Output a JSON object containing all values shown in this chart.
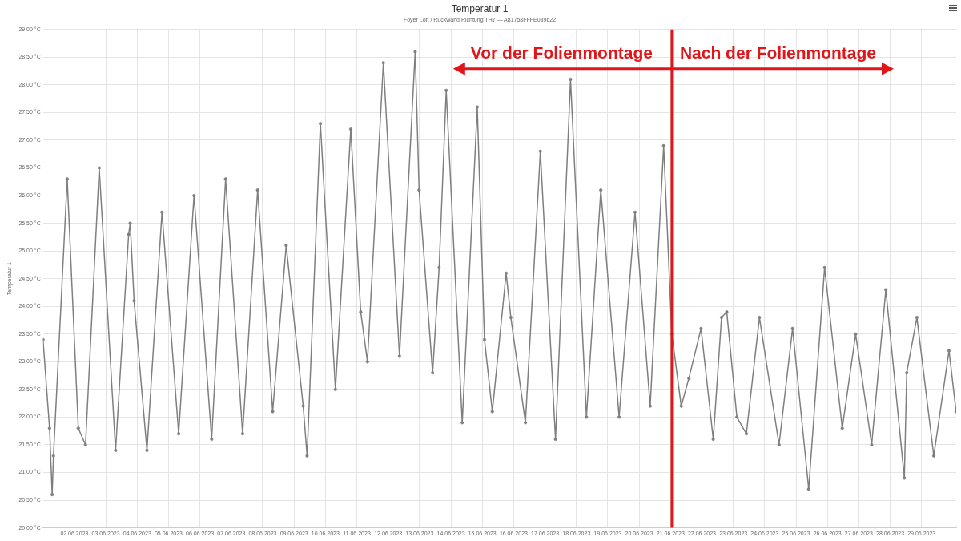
{
  "chart_data": {
    "type": "line",
    "title": "Temperatur 1",
    "subtitle": "Foyer Loft / Rückwand Richtung TH7 — A81758FFFE039622",
    "ylabel": "Temperatur 1",
    "series": [
      {
        "color": "#7f7f7f",
        "x": [
          "2023-06-01T00:00",
          "2023-06-01T05:00",
          "2023-06-01T07:00",
          "2023-06-01T08:00",
          "2023-06-01T18:30",
          "2023-06-02T03:00",
          "2023-06-02T08:30",
          "2023-06-02T19:00",
          "2023-06-03T07:30",
          "2023-06-03T17:30",
          "2023-06-03T18:40",
          "2023-06-03T21:40",
          "2023-06-04T07:30",
          "2023-06-04T19:00",
          "2023-06-05T07:45",
          "2023-06-05T19:30",
          "2023-06-06T09:00",
          "2023-06-06T19:40",
          "2023-06-07T08:40",
          "2023-06-07T20:10",
          "2023-06-08T07:40",
          "2023-06-08T18:00",
          "2023-06-09T07:00",
          "2023-06-09T10:00",
          "2023-06-09T20:10",
          "2023-06-10T07:40",
          "2023-06-10T19:25",
          "2023-06-11T03:00",
          "2023-06-11T08:10",
          "2023-06-11T20:20",
          "2023-06-12T08:40",
          "2023-06-12T20:40",
          "2023-06-12T23:40",
          "2023-06-13T10:00",
          "2023-06-13T15:00",
          "2023-06-13T20:25",
          "2023-06-14T08:40",
          "2023-06-14T20:10",
          "2023-06-15T01:40",
          "2023-06-15T07:40",
          "2023-06-15T18:15",
          "2023-06-15T21:50",
          "2023-06-16T09:00",
          "2023-06-16T20:25",
          "2023-06-17T08:00",
          "2023-06-17T19:30",
          "2023-06-18T07:40",
          "2023-06-18T18:40",
          "2023-06-19T08:40",
          "2023-06-19T20:50",
          "2023-06-20T08:25",
          "2023-06-20T18:45",
          "2023-06-21T01:00",
          "2023-06-21T08:10",
          "2023-06-21T14:00",
          "2023-06-21T23:20",
          "2023-06-22T08:40",
          "2023-06-22T15:00",
          "2023-06-22T19:00",
          "2023-06-23T02:45",
          "2023-06-23T10:00",
          "2023-06-23T20:00",
          "2023-06-24T11:00",
          "2023-06-24T21:20",
          "2023-06-25T09:40",
          "2023-06-25T21:50",
          "2023-06-26T11:20",
          "2023-06-26T21:35",
          "2023-06-27T09:50",
          "2023-06-27T20:40",
          "2023-06-28T10:50",
          "2023-06-28T12:40",
          "2023-06-28T20:25",
          "2023-06-29T09:20",
          "2023-06-29T21:00",
          "2023-06-30T02:25"
        ],
        "values": [
          23.4,
          21.8,
          20.6,
          21.3,
          26.3,
          21.8,
          21.5,
          26.5,
          21.4,
          25.3,
          25.5,
          24.1,
          21.4,
          25.7,
          21.7,
          26.0,
          21.6,
          26.3,
          21.7,
          26.1,
          22.1,
          25.1,
          22.2,
          21.3,
          27.3,
          22.5,
          27.2,
          23.9,
          23.0,
          28.4,
          23.1,
          28.6,
          26.1,
          22.8,
          24.7,
          27.9,
          21.9,
          27.6,
          23.4,
          22.1,
          24.6,
          23.8,
          21.9,
          26.8,
          21.6,
          28.1,
          22.0,
          26.1,
          22.0,
          25.7,
          22.2,
          26.9,
          23.5,
          22.2,
          22.7,
          23.6,
          21.6,
          23.8,
          23.9,
          22.0,
          21.7,
          23.8,
          21.5,
          23.6,
          20.7,
          24.7,
          21.8,
          23.5,
          21.5,
          24.3,
          20.9,
          22.8,
          23.8,
          21.3,
          23.2,
          22.1
        ]
      }
    ],
    "xlim": [
      "2023-06-01T00:00",
      "2023-06-30T02:30"
    ],
    "xticks": [
      {
        "value": "2023-06-02",
        "label": "02.06.2023"
      },
      {
        "value": "2023-06-03",
        "label": "03.06.2023"
      },
      {
        "value": "2023-06-04",
        "label": "04.06.2023"
      },
      {
        "value": "2023-06-05",
        "label": "05.06.2023"
      },
      {
        "value": "2023-06-06",
        "label": "06.06.2023"
      },
      {
        "value": "2023-06-07",
        "label": "07.06.2023"
      },
      {
        "value": "2023-06-08",
        "label": "08.06.2023"
      },
      {
        "value": "2023-06-09",
        "label": "09.06.2023"
      },
      {
        "value": "2023-06-10",
        "label": "10.06.2023"
      },
      {
        "value": "2023-06-11",
        "label": "11.06.2023"
      },
      {
        "value": "2023-06-12",
        "label": "12.06.2023"
      },
      {
        "value": "2023-06-13",
        "label": "13.06.2023"
      },
      {
        "value": "2023-06-14",
        "label": "14.06.2023"
      },
      {
        "value": "2023-06-15",
        "label": "15.06.2023"
      },
      {
        "value": "2023-06-16",
        "label": "16.06.2023"
      },
      {
        "value": "2023-06-17",
        "label": "17.06.2023"
      },
      {
        "value": "2023-06-18",
        "label": "18.06.2023"
      },
      {
        "value": "2023-06-19",
        "label": "19.06.2023"
      },
      {
        "value": "2023-06-20",
        "label": "20.06.2023"
      },
      {
        "value": "2023-06-21",
        "label": "21.06.2023"
      },
      {
        "value": "2023-06-22",
        "label": "22.06.2023"
      },
      {
        "value": "2023-06-23",
        "label": "23.06.2023"
      },
      {
        "value": "2023-06-24",
        "label": "24.06.2023"
      },
      {
        "value": "2023-06-25",
        "label": "25.06.2023"
      },
      {
        "value": "2023-06-26",
        "label": "26.06.2023"
      },
      {
        "value": "2023-06-27",
        "label": "27.06.2023"
      },
      {
        "value": "2023-06-28",
        "label": "28.06.2023"
      },
      {
        "value": "2023-06-29",
        "label": "29.06.2023"
      }
    ],
    "ylim": [
      20,
      29
    ],
    "yticks": [
      {
        "value": 20,
        "label": "20.00 °C"
      },
      {
        "value": 20.5,
        "label": "20.50 °C"
      },
      {
        "value": 21,
        "label": "21.00 °C"
      },
      {
        "value": 21.5,
        "label": "21.50 °C"
      },
      {
        "value": 22,
        "label": "22.00 °C"
      },
      {
        "value": 22.5,
        "label": "22.50 °C"
      },
      {
        "value": 23,
        "label": "23.00 °C"
      },
      {
        "value": 23.5,
        "label": "23.50 °C"
      },
      {
        "value": 24,
        "label": "24.00 °C"
      },
      {
        "value": 24.5,
        "label": "24.50 °C"
      },
      {
        "value": 25,
        "label": "25.00 °C"
      },
      {
        "value": 25.5,
        "label": "25.50 °C"
      },
      {
        "value": 26,
        "label": "26.00 °C"
      },
      {
        "value": 26.5,
        "label": "26.50 °C"
      },
      {
        "value": 27,
        "label": "27.00 °C"
      },
      {
        "value": 27.5,
        "label": "27.50 °C"
      },
      {
        "value": 28,
        "label": "28.00 °C"
      },
      {
        "value": 28.5,
        "label": "28.50 °C"
      },
      {
        "value": 29,
        "label": "29.00 °C"
      }
    ],
    "ref_lines": [
      {
        "axis": "x",
        "value": "2023-06-21T01:00",
        "color": "#e0161b"
      }
    ],
    "annotations": [
      "Vor der Folienmontage",
      "Nach der Folienmontage"
    ],
    "grid": true,
    "legend": false,
    "marker": "circle",
    "line_style": "solid"
  }
}
